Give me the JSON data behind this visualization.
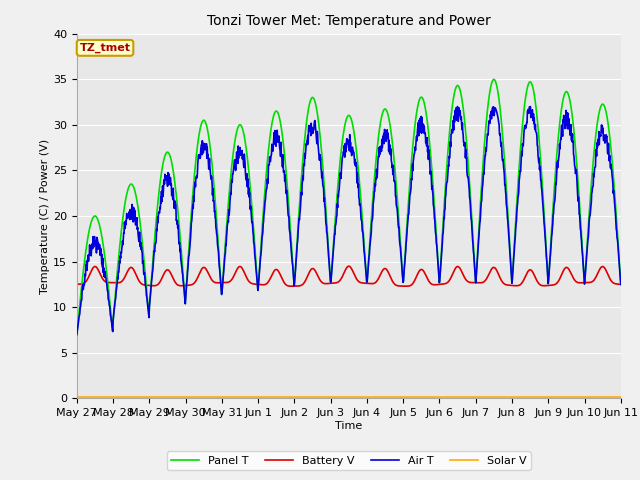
{
  "title": "Tonzi Tower Met: Temperature and Power",
  "xlabel": "Time",
  "ylabel": "Temperature (C) / Power (V)",
  "ylim": [
    0,
    40
  ],
  "annotation_label": "TZ_tmet",
  "fig_facecolor": "#f0f0f0",
  "ax_facecolor": "#e8e8e8",
  "grid_color": "#ffffff",
  "series": {
    "panel_t": {
      "label": "Panel T",
      "color": "#00dd00",
      "linewidth": 1.2
    },
    "battery_v": {
      "label": "Battery V",
      "color": "#dd0000",
      "linewidth": 1.2
    },
    "air_t": {
      "label": "Air T",
      "color": "#0000dd",
      "linewidth": 1.2
    },
    "solar_v": {
      "label": "Solar V",
      "color": "#ffaa00",
      "linewidth": 1.2
    }
  },
  "xtick_labels": [
    "May 27",
    "May 28",
    "May 29",
    "May 30",
    "May 31",
    "Jun 1",
    "Jun 2",
    "Jun 3",
    "Jun 4",
    "Jun 5",
    "Jun 6",
    "Jun 7",
    "Jun 8",
    "Jun 9",
    "Jun 10",
    "Jun 11"
  ],
  "ytick_values": [
    0,
    5,
    10,
    15,
    20,
    25,
    30,
    35,
    40
  ],
  "num_days": 15,
  "title_fontsize": 10,
  "axis_fontsize": 8,
  "legend_fontsize": 8
}
